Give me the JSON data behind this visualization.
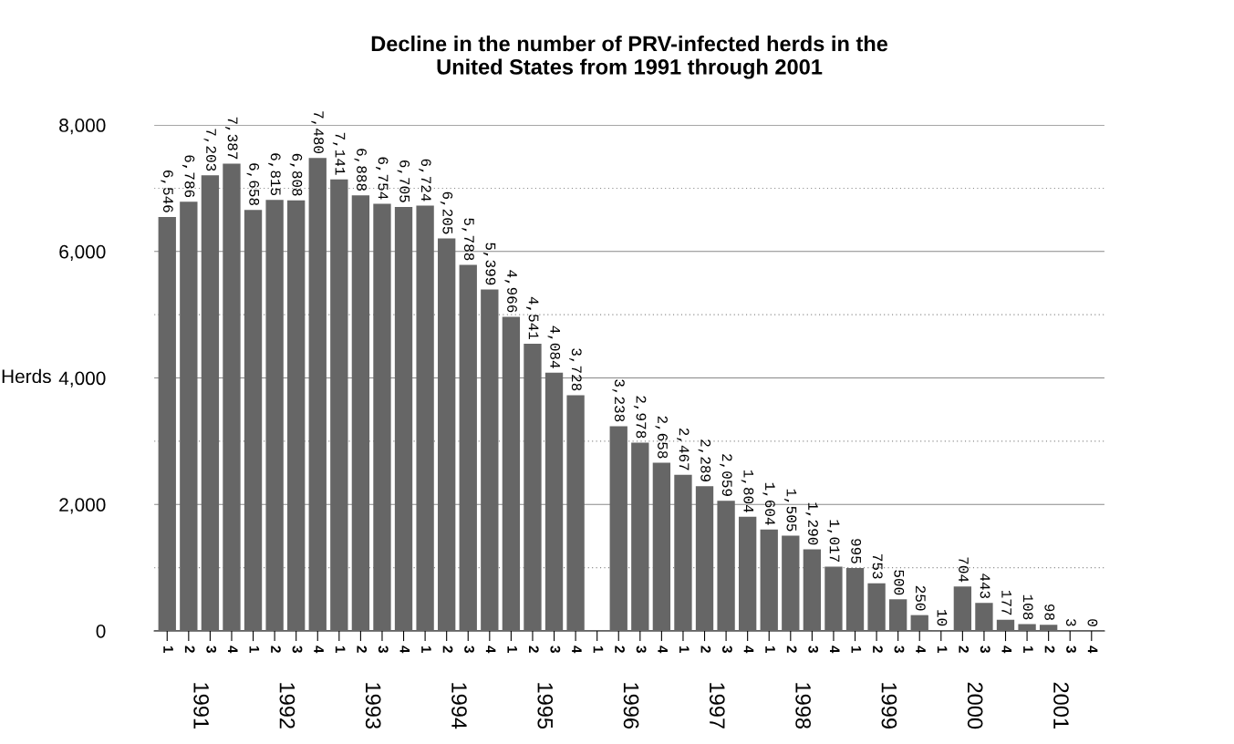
{
  "chart_data": {
    "type": "bar",
    "title": "Decline in the number of PRV-infected herds in the\nUnited States from 1991 through 2001",
    "ylabel": "Herds",
    "categories": [
      "1",
      "2",
      "3",
      "4",
      "1",
      "2",
      "3",
      "4",
      "1",
      "2",
      "3",
      "4",
      "1",
      "2",
      "3",
      "4",
      "1",
      "2",
      "3",
      "4",
      "1",
      "2",
      "3",
      "4",
      "1",
      "2",
      "3",
      "4",
      "1",
      "2",
      "3",
      "4",
      "1",
      "2",
      "3",
      "4",
      "1",
      "2",
      "3",
      "4",
      "1",
      "2",
      "3",
      "4"
    ],
    "values": [
      6546,
      6786,
      7203,
      7387,
      6658,
      6815,
      6808,
      7480,
      7141,
      6888,
      6754,
      6705,
      6724,
      6205,
      5788,
      5399,
      4966,
      4541,
      4084,
      3728,
      null,
      3238,
      2978,
      2658,
      2467,
      2289,
      2059,
      1804,
      1604,
      1505,
      1290,
      1017,
      995,
      753,
      500,
      250,
      10,
      704,
      443,
      177,
      108,
      98,
      3,
      0
    ],
    "value_labels": [
      "6,546",
      "6,786",
      "7,203",
      "7,387",
      "6,658",
      "6,815",
      "6,808",
      "7,480",
      "7,141",
      "6,888",
      "6,754",
      "6,705",
      "6,724",
      "6,205",
      "5,788",
      "5,399",
      "4,966",
      "4,541",
      "4,084",
      "3,728",
      null,
      "3,238",
      "2,978",
      "2,658",
      "2,467",
      "2,289",
      "2,059",
      "1,804",
      "1,604",
      "1,505",
      "1,290",
      "1,017",
      "995",
      "753",
      "500",
      "250",
      "10",
      "704",
      "443",
      "177",
      "108",
      "98",
      "3",
      "0"
    ],
    "color": "#666666",
    "annotations": [
      "1991",
      "1992",
      "1993",
      "1994",
      "1995",
      "1996",
      "1997",
      "1998",
      "1999",
      "2000",
      "2001"
    ],
    "ylim": [
      0,
      8000
    ],
    "yticks": [
      0,
      {
        "value": 1000,
        "label": null
      },
      {
        "value": 2000,
        "label": "2,000"
      },
      {
        "value": 3000,
        "label": null
      },
      {
        "value": 4000,
        "label": "4,000"
      },
      {
        "value": 5000,
        "label": null
      },
      {
        "value": 6000,
        "label": "6,000"
      },
      {
        "value": 7000,
        "label": null
      },
      {
        "value": 8000,
        "label": "8,000"
      }
    ],
    "grid": "y",
    "legend": false
  }
}
